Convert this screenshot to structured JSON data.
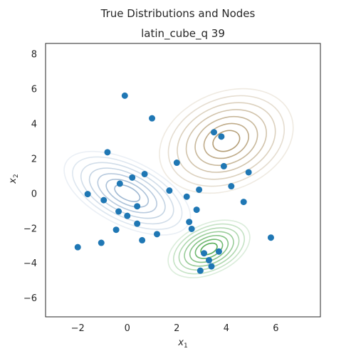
{
  "chart_data": {
    "type": "scatter",
    "title": "True Distributions  and Nodes",
    "subtitle": "latin_cube_q 39",
    "xlabel": "x",
    "xlabel_sub": "1",
    "ylabel": "x",
    "ylabel_sub": "2",
    "xlim": [
      -3.3,
      7.8
    ],
    "ylim": [
      -7.1,
      8.6
    ],
    "xticks": [
      -2,
      0,
      2,
      4,
      6
    ],
    "yticks": [
      -6,
      -4,
      -2,
      0,
      2,
      4,
      6,
      8
    ],
    "grid": false,
    "point_color": "#1f77b4",
    "distributions": [
      {
        "name": "blue",
        "color": "#9fb8d2",
        "center": [
          0,
          0
        ],
        "sigma": [
          0.85,
          0.8
        ],
        "rho": -0.55
      },
      {
        "name": "brown",
        "color": "#b59f78",
        "center": [
          4,
          3
        ],
        "sigma": [
          0.9,
          1.0
        ],
        "rho": 0.25
      },
      {
        "name": "green",
        "color": "#5aae5a",
        "center": [
          3.3,
          -3.2
        ],
        "sigma": [
          0.55,
          0.55
        ],
        "rho": 0.4
      }
    ],
    "points": [
      {
        "x": -0.1,
        "y": 5.6
      },
      {
        "x": 1.0,
        "y": 4.3
      },
      {
        "x": -0.8,
        "y": 2.35
      },
      {
        "x": 3.5,
        "y": 3.5
      },
      {
        "x": 3.8,
        "y": 3.25
      },
      {
        "x": 2.0,
        "y": 1.75
      },
      {
        "x": 3.9,
        "y": 1.55
      },
      {
        "x": 4.9,
        "y": 1.2
      },
      {
        "x": 0.2,
        "y": 0.9
      },
      {
        "x": 0.7,
        "y": 1.1
      },
      {
        "x": -0.3,
        "y": 0.55
      },
      {
        "x": 4.2,
        "y": 0.4
      },
      {
        "x": 1.7,
        "y": 0.15
      },
      {
        "x": 2.9,
        "y": 0.2
      },
      {
        "x": -1.6,
        "y": -0.05
      },
      {
        "x": 2.4,
        "y": -0.2
      },
      {
        "x": -0.95,
        "y": -0.4
      },
      {
        "x": 4.7,
        "y": -0.5
      },
      {
        "x": 0.4,
        "y": -0.75
      },
      {
        "x": -0.35,
        "y": -1.05
      },
      {
        "x": 0.0,
        "y": -1.3
      },
      {
        "x": 2.8,
        "y": -0.95
      },
      {
        "x": 0.4,
        "y": -1.75
      },
      {
        "x": 2.5,
        "y": -1.65
      },
      {
        "x": -0.45,
        "y": -2.1
      },
      {
        "x": 2.6,
        "y": -2.05
      },
      {
        "x": 1.2,
        "y": -2.35
      },
      {
        "x": 0.6,
        "y": -2.7
      },
      {
        "x": 5.8,
        "y": -2.55
      },
      {
        "x": -1.05,
        "y": -2.85
      },
      {
        "x": -2.0,
        "y": -3.1
      },
      {
        "x": 3.7,
        "y": -3.35
      },
      {
        "x": 3.1,
        "y": -3.45
      },
      {
        "x": 3.3,
        "y": -3.85
      },
      {
        "x": 3.4,
        "y": -4.2
      },
      {
        "x": 2.95,
        "y": -4.45
      }
    ]
  }
}
